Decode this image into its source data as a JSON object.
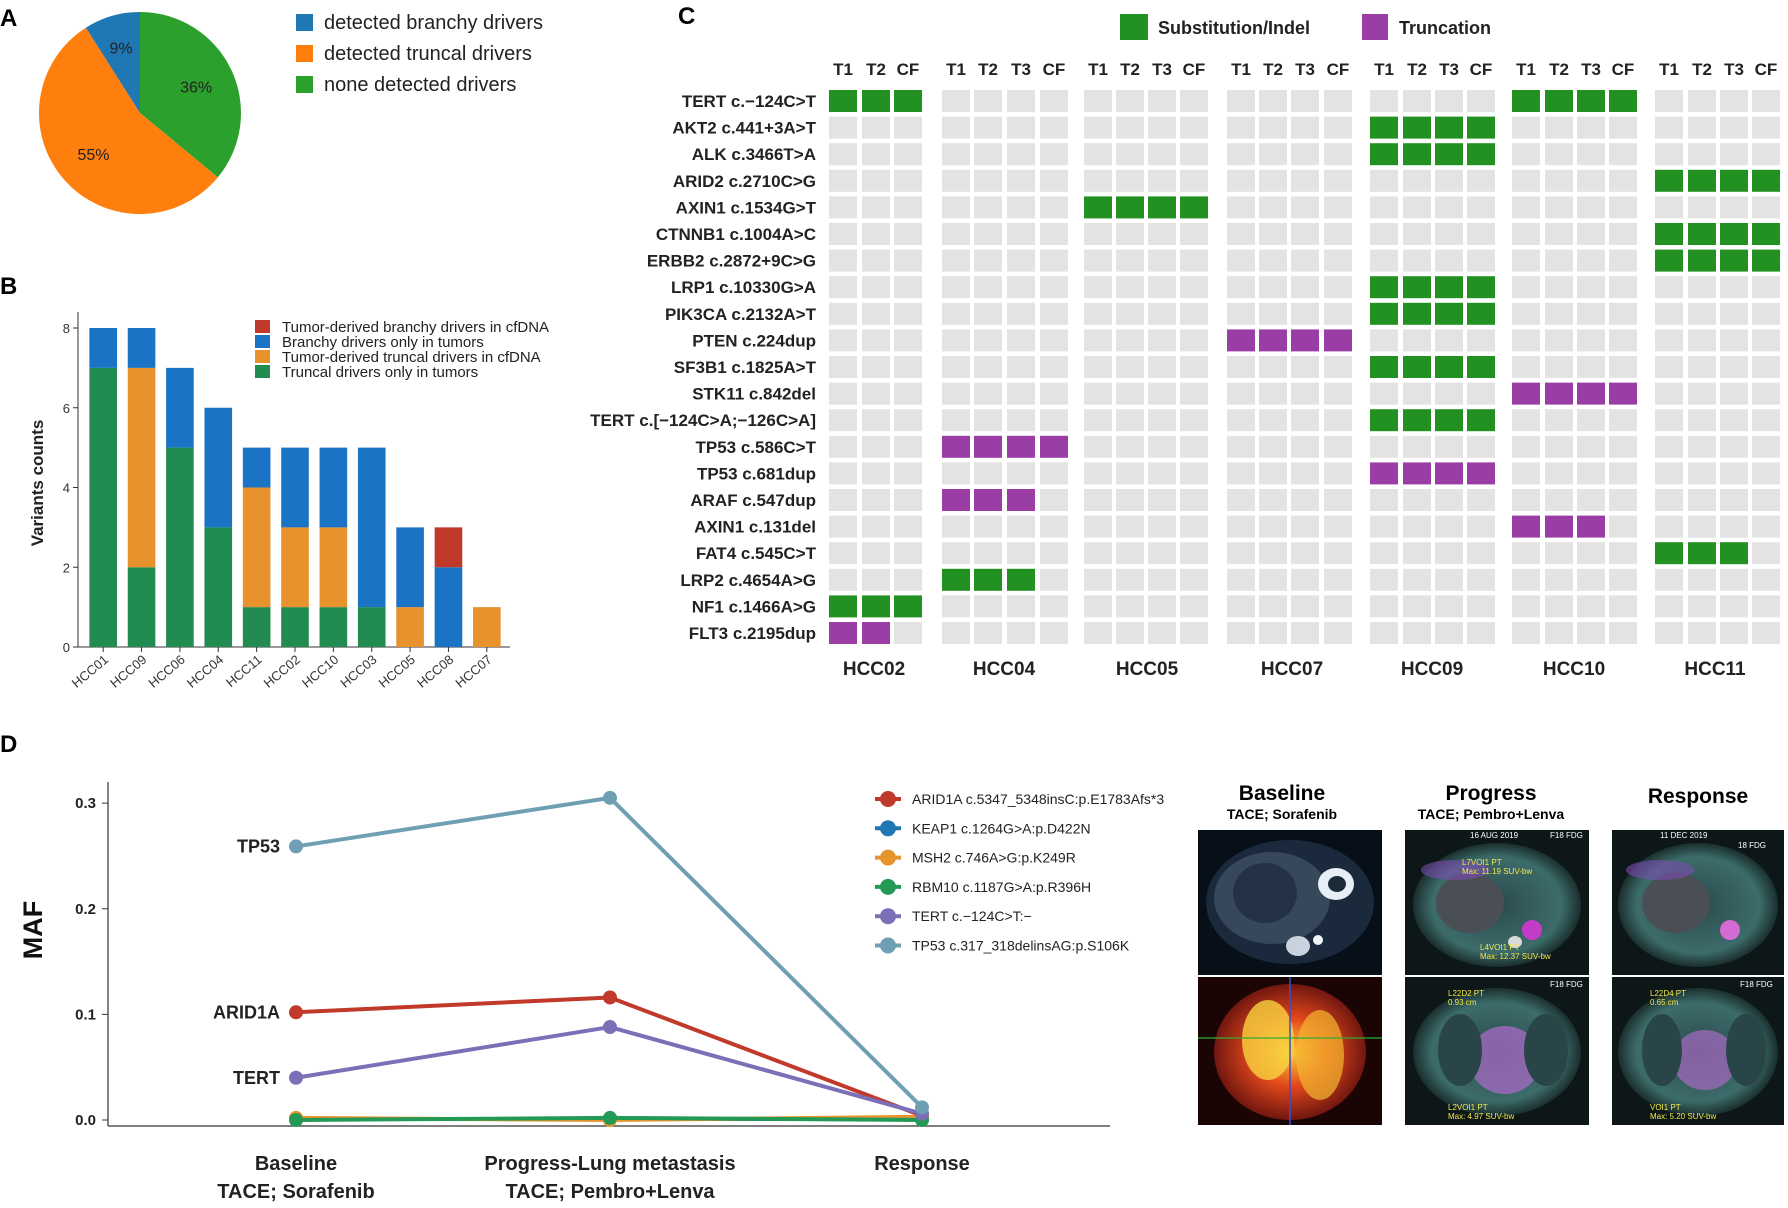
{
  "panel_labels": {
    "a": "A",
    "b": "B",
    "c": "C",
    "d": "D"
  },
  "colors": {
    "blue": "#1f77b4",
    "orange": "#ff7f0e",
    "green": "#2ca02c",
    "b_red": "#c0392b",
    "b_blue": "#1a73c4",
    "b_orange": "#e8922e",
    "b_green": "#218b52",
    "sub": "#229122",
    "trunc": "#9a3ea6",
    "grid_empty": "#e3e3e3",
    "d_red": "#c0392b",
    "d_blue": "#1f77b4",
    "d_orange": "#e6952e",
    "d_green": "#229954",
    "d_purple": "#7b6fb8",
    "d_teal": "#6f9fb3"
  },
  "chart_data": [
    {
      "id": "A",
      "type": "pie",
      "slices": [
        {
          "label": "detected branchy drivers",
          "value": 9,
          "text": "9%",
          "color": "#1f77b4"
        },
        {
          "label": "detected truncal drivers",
          "value": 55,
          "text": "55%",
          "color": "#ff7f0e"
        },
        {
          "label": "none detected drivers",
          "value": 36,
          "text": "36%",
          "color": "#2ca02c"
        }
      ]
    },
    {
      "id": "B",
      "type": "bar",
      "stacked": true,
      "categories": [
        "HCC01",
        "HCC09",
        "HCC06",
        "HCC04",
        "HCC11",
        "HCC02",
        "HCC10",
        "HCC03",
        "HCC05",
        "HCC08",
        "HCC07"
      ],
      "series": [
        {
          "name": "Truncal drivers only in tumors",
          "color": "#218b52",
          "values": [
            7,
            2,
            5,
            3,
            1,
            1,
            1,
            1,
            0,
            0,
            0
          ]
        },
        {
          "name": "Tumor-derived truncal drivers in cfDNA",
          "color": "#e8922e",
          "values": [
            0,
            5,
            0,
            0,
            3,
            2,
            2,
            0,
            1,
            0,
            1
          ]
        },
        {
          "name": "Branchy drivers only in tumors",
          "color": "#1a73c4",
          "values": [
            1,
            1,
            2,
            3,
            1,
            2,
            2,
            4,
            2,
            2,
            0
          ]
        },
        {
          "name": "Tumor-derived branchy drivers in cfDNA",
          "color": "#c0392b",
          "values": [
            0,
            0,
            0,
            0,
            0,
            0,
            0,
            0,
            0,
            1,
            0
          ]
        }
      ],
      "legend_order": [
        "Tumor-derived branchy drivers in cfDNA",
        "Branchy drivers only in tumors",
        "Tumor-derived truncal drivers in cfDNA",
        "Truncal drivers only in tumors"
      ],
      "ylabel": "Variants counts",
      "ylim": [
        0,
        8
      ],
      "yticks": [
        "0",
        "2",
        "4",
        "6",
        "8"
      ]
    },
    {
      "id": "C",
      "type": "heatmap",
      "legend": [
        {
          "label": "Substitution/Indel",
          "code": "S"
        },
        {
          "label": "Truncation",
          "code": "T"
        }
      ],
      "patients": [
        {
          "name": "HCC02",
          "samples": [
            "T1",
            "T2",
            "CF"
          ]
        },
        {
          "name": "HCC04",
          "samples": [
            "T1",
            "T2",
            "T3",
            "CF"
          ]
        },
        {
          "name": "HCC05",
          "samples": [
            "T1",
            "T2",
            "T3",
            "CF"
          ]
        },
        {
          "name": "HCC07",
          "samples": [
            "T1",
            "T2",
            "T3",
            "CF"
          ]
        },
        {
          "name": "HCC09",
          "samples": [
            "T1",
            "T2",
            "T3",
            "CF"
          ]
        },
        {
          "name": "HCC10",
          "samples": [
            "T1",
            "T2",
            "T3",
            "CF"
          ]
        },
        {
          "name": "HCC11",
          "samples": [
            "T1",
            "T2",
            "T3",
            "CF"
          ]
        }
      ],
      "mutations": [
        "TERT c.−124C>T",
        "AKT2 c.441+3A>T",
        "ALK c.3466T>A",
        "ARID2 c.2710C>G",
        "AXIN1 c.1534G>T",
        "CTNNB1 c.1004A>C",
        "ERBB2 c.2872+9C>G",
        "LRP1 c.10330G>A",
        "PIK3CA c.2132A>T",
        "PTEN c.224dup",
        "SF3B1 c.1825A>T",
        "STK11 c.842del",
        "TERT c.[−124C>A;−126C>A]",
        "TP53 c.586C>T",
        "TP53 c.681dup",
        "ARAF c.547dup",
        "AXIN1 c.131del",
        "FAT4 c.545C>T",
        "LRP2 c.4654A>G",
        "NF1 c.1466A>G",
        "FLT3 c.2195dup"
      ],
      "cells": [
        [
          "SSS",
          "....",
          "....",
          "....",
          "....",
          "SSSS",
          "...."
        ],
        [
          "...",
          "....",
          "....",
          "....",
          "SSSS",
          "....",
          "...."
        ],
        [
          "...",
          "....",
          "....",
          "....",
          "SSSS",
          "....",
          "...."
        ],
        [
          "...",
          "....",
          "....",
          "....",
          "....",
          "....",
          "SSSS"
        ],
        [
          "...",
          "....",
          "SSSS",
          "....",
          "....",
          "....",
          "...."
        ],
        [
          "...",
          "....",
          "....",
          "....",
          "....",
          "....",
          "SSSS"
        ],
        [
          "...",
          "....",
          "....",
          "....",
          "....",
          "....",
          "SSSS"
        ],
        [
          "...",
          "....",
          "....",
          "....",
          "SSSS",
          "....",
          "...."
        ],
        [
          "...",
          "....",
          "....",
          "....",
          "SSSS",
          "....",
          "...."
        ],
        [
          "...",
          "....",
          "....",
          "TTTT",
          "....",
          "....",
          "...."
        ],
        [
          "...",
          "....",
          "....",
          "....",
          "SSSS",
          "....",
          "...."
        ],
        [
          "...",
          "....",
          "....",
          "....",
          "....",
          "TTTT",
          "...."
        ],
        [
          "...",
          "....",
          "....",
          "....",
          "SSSS",
          "....",
          "...."
        ],
        [
          "...",
          "TTTT",
          "....",
          "....",
          "....",
          "....",
          "...."
        ],
        [
          "...",
          "....",
          "....",
          "....",
          "TTTT",
          "....",
          "...."
        ],
        [
          "...",
          "TTT.",
          "....",
          "....",
          "....",
          "....",
          "...."
        ],
        [
          "...",
          "....",
          "....",
          "....",
          "....",
          "TTT.",
          "...."
        ],
        [
          "...",
          "....",
          "....",
          "....",
          "....",
          "....",
          "SSS."
        ],
        [
          "...",
          "SSS.",
          "....",
          "....",
          "....",
          "....",
          "...."
        ],
        [
          "SSS",
          "....",
          "....",
          "....",
          "....",
          "....",
          "...."
        ],
        [
          "TT.",
          "....",
          "....",
          "....",
          "....",
          "....",
          "...."
        ]
      ]
    },
    {
      "id": "D",
      "type": "line",
      "ylabel": "MAF",
      "ylim": [
        0,
        0.32
      ],
      "yticks": [
        "0.0",
        "0.1",
        "0.2",
        "0.3"
      ],
      "x": [
        {
          "line1": "Baseline",
          "line2": "TACE; Sorafenib"
        },
        {
          "line1": "Progress-Lung metastasis",
          "line2": "TACE; Pembro+Lenva"
        },
        {
          "line1": "Response",
          "line2": ""
        }
      ],
      "series": [
        {
          "name": "ARID1A c.5347_5348insC:p.E1783Afs*3",
          "color": "#c0392b",
          "values": [
            0.102,
            0.116,
            0.004
          ],
          "label": "ARID1A"
        },
        {
          "name": "KEAP1 c.1264G>A:p.D422N",
          "color": "#1f77b4",
          "values": [
            0.001,
            0.001,
            0.001
          ],
          "label": ""
        },
        {
          "name": "MSH2 c.746A>G:p.K249R",
          "color": "#e6952e",
          "values": [
            0.002,
            0.0,
            0.003
          ],
          "label": ""
        },
        {
          "name": "RBM10 c.1187G>A:p.R396H",
          "color": "#229954",
          "values": [
            0.0,
            0.002,
            0.0
          ],
          "label": ""
        },
        {
          "name": "TERT c.−124C>T:−",
          "color": "#7b6fb8",
          "values": [
            0.04,
            0.088,
            0.006
          ],
          "label": "TERT"
        },
        {
          "name": "TP53 c.317_318delinsAG:p.S106K",
          "color": "#6f9fb3",
          "values": [
            0.259,
            0.305,
            0.012
          ],
          "label": "TP53"
        }
      ]
    }
  ],
  "scans": {
    "columns": [
      {
        "title": "Baseline",
        "subtitle": "TACE; Sorafenib"
      },
      {
        "title": "Progress",
        "subtitle": "TACE; Pembro+Lenva"
      },
      {
        "title": "Response",
        "subtitle": ""
      }
    ],
    "annotations": {
      "progress_date": "16 AUG 2019",
      "progress_tag": "F18 FDG",
      "progress_top_label": "L7VOI1 PT",
      "progress_top_value": "Max: 11.19 SUV-bw",
      "progress_mid_label": "L4VOI1 PT",
      "progress_mid_value": "Max: 12.37 SUV-bw",
      "progress_bottom_tag": "F18 FDG",
      "progress_bottom_label": "L22D2 PT",
      "progress_bottom_value": "0.93 cm",
      "progress_bottom_label2": "L2VOI1 PT",
      "progress_bottom_value2": "Max: 4.97 SUV-bw",
      "response_date": "11 DEC 2019",
      "response_tag": "18 FDG",
      "response_bottom_tag": "F18 FDG",
      "response_bottom_label": "L22D4 PT",
      "response_bottom_value": "0.65 cm",
      "response_bottom_label2": "VOI1 PT",
      "response_bottom_value2": "Max: 5.20 SUV-bw"
    }
  }
}
